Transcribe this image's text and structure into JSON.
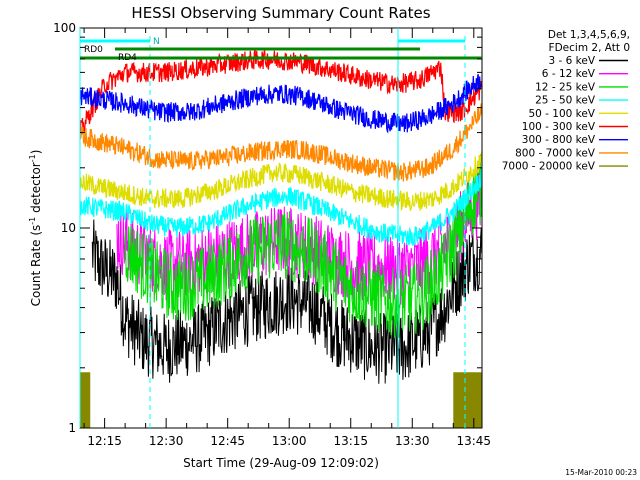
{
  "chart_data": {
    "type": "line",
    "title": "HESSI Observing Summary Count Rates",
    "xlabel": "Start Time (29-Aug-09 12:09:02)",
    "ylabel": {
      "prefix": "Count Rate (s",
      "sup": "-1",
      "suffix": " detector",
      "sup2": "-1",
      "close": ")"
    },
    "x_ticks": [
      "12:15",
      "12:30",
      "12:45",
      "13:00",
      "13:15",
      "13:30",
      "13:45"
    ],
    "x_tick_minutes": [
      15,
      30,
      45,
      60,
      75,
      90,
      105
    ],
    "xlim_minutes": [
      9,
      107
    ],
    "y_scale": "log",
    "ylim": [
      1,
      100
    ],
    "y_ticks": [
      "1",
      "10",
      "100"
    ],
    "legend": {
      "header": [
        "Det 1,3,4,5,6,9,",
        "FDecim 2, Att 0"
      ],
      "entries": [
        "3 - 6 keV",
        "6 - 12 keV",
        "12 - 25 keV",
        "25 - 50 keV",
        "50 - 100 keV",
        "100 - 300 keV",
        "300 - 800 keV",
        "800 - 7000 keV",
        "7000 - 20000 keV"
      ],
      "colors": [
        "#000000",
        "#ff00ff",
        "#00dd00",
        "#00ffff",
        "#dddd00",
        "#ff0000",
        "#0000ff",
        "#ff8800",
        "#888800"
      ],
      "placement": "right"
    },
    "annotations": {
      "saa_label": "RD0",
      "night_label": "N",
      "decim_label": "RD4"
    },
    "timestamp": "15-Mar-2010 00:23",
    "series_profiles": [
      {
        "name": "3 - 6 keV",
        "color": "#000000",
        "start": 12,
        "end": 107,
        "points": [
          [
            12,
            7.5
          ],
          [
            14,
            6.5
          ],
          [
            18,
            5.5
          ],
          [
            20,
            3.5
          ],
          [
            24,
            2.8
          ],
          [
            30,
            2.5
          ],
          [
            38,
            2.8
          ],
          [
            45,
            3.5
          ],
          [
            52,
            4
          ],
          [
            60,
            4.5
          ],
          [
            66,
            4
          ],
          [
            72,
            3
          ],
          [
            80,
            2.5
          ],
          [
            88,
            2.5
          ],
          [
            94,
            3
          ],
          [
            98,
            4
          ],
          [
            100,
            5
          ],
          [
            104,
            7
          ],
          [
            107,
            7.5
          ]
        ]
      },
      {
        "name": "6 - 12 keV",
        "color": "#ff00ff",
        "start": 18,
        "end": 107,
        "points": [
          [
            18,
            9
          ],
          [
            24,
            7.5
          ],
          [
            30,
            6.5
          ],
          [
            40,
            7
          ],
          [
            50,
            8
          ],
          [
            58,
            8.8
          ],
          [
            65,
            8
          ],
          [
            75,
            6.5
          ],
          [
            86,
            6.2
          ],
          [
            92,
            6.5
          ],
          [
            96,
            7.5
          ],
          [
            100,
            9
          ],
          [
            104,
            12
          ],
          [
            107,
            14
          ]
        ]
      },
      {
        "name": "12 - 25 keV",
        "color": "#00dd00",
        "start": 20,
        "end": 107,
        "points": [
          [
            20,
            8
          ],
          [
            26,
            6
          ],
          [
            32,
            5
          ],
          [
            40,
            5.5
          ],
          [
            50,
            7.5
          ],
          [
            58,
            8.5
          ],
          [
            65,
            7.5
          ],
          [
            75,
            5
          ],
          [
            85,
            4.2
          ],
          [
            92,
            4.5
          ],
          [
            97,
            6
          ],
          [
            101,
            9
          ],
          [
            104,
            13
          ],
          [
            107,
            16
          ]
        ]
      },
      {
        "name": "25 - 50 keV",
        "color": "#00ffff",
        "start": 9,
        "end": 107,
        "points": [
          [
            9,
            13
          ],
          [
            14,
            12.5
          ],
          [
            20,
            12
          ],
          [
            26,
            10.5
          ],
          [
            32,
            10
          ],
          [
            40,
            10.5
          ],
          [
            48,
            12.5
          ],
          [
            55,
            14
          ],
          [
            60,
            14.5
          ],
          [
            66,
            13
          ],
          [
            74,
            11
          ],
          [
            82,
            9.5
          ],
          [
            90,
            9
          ],
          [
            95,
            10
          ],
          [
            100,
            12
          ],
          [
            104,
            15
          ],
          [
            107,
            18
          ]
        ]
      },
      {
        "name": "50 - 100 keV",
        "color": "#dddd00",
        "start": 9,
        "end": 107,
        "points": [
          [
            9,
            17
          ],
          [
            14,
            16
          ],
          [
            20,
            15
          ],
          [
            26,
            14
          ],
          [
            34,
            14
          ],
          [
            42,
            15.5
          ],
          [
            50,
            17.5
          ],
          [
            56,
            19
          ],
          [
            62,
            18.5
          ],
          [
            68,
            17
          ],
          [
            76,
            15
          ],
          [
            84,
            14
          ],
          [
            90,
            13.5
          ],
          [
            95,
            14
          ],
          [
            100,
            16
          ],
          [
            104,
            19
          ],
          [
            107,
            22
          ]
        ]
      },
      {
        "name": "100 - 300 keV",
        "color": "#ff0000",
        "start": 9,
        "end": 107,
        "points": [
          [
            9,
            30
          ],
          [
            15,
            52
          ],
          [
            20,
            60
          ],
          [
            30,
            60
          ],
          [
            40,
            64
          ],
          [
            48,
            68
          ],
          [
            54,
            70
          ],
          [
            62,
            68
          ],
          [
            70,
            62
          ],
          [
            78,
            56
          ],
          [
            86,
            52
          ],
          [
            92,
            55
          ],
          [
            97,
            64
          ],
          [
            98,
            38
          ],
          [
            102,
            38
          ],
          [
            105,
            45
          ],
          [
            107,
            50
          ]
        ]
      },
      {
        "name": "300 - 800 keV",
        "color": "#0000ff",
        "start": 9,
        "end": 107,
        "points": [
          [
            9,
            46
          ],
          [
            14,
            44
          ],
          [
            20,
            42
          ],
          [
            28,
            38
          ],
          [
            36,
            38
          ],
          [
            44,
            42
          ],
          [
            52,
            46
          ],
          [
            58,
            47
          ],
          [
            64,
            45
          ],
          [
            72,
            39
          ],
          [
            80,
            35
          ],
          [
            88,
            33
          ],
          [
            94,
            36
          ],
          [
            100,
            42
          ],
          [
            104,
            50
          ],
          [
            107,
            56
          ]
        ]
      },
      {
        "name": "800 - 7000 keV",
        "color": "#ff8800",
        "start": 9,
        "end": 107,
        "points": [
          [
            9,
            29
          ],
          [
            14,
            27
          ],
          [
            20,
            25
          ],
          [
            28,
            22
          ],
          [
            36,
            21.5
          ],
          [
            44,
            22.5
          ],
          [
            52,
            24
          ],
          [
            58,
            25
          ],
          [
            64,
            24.5
          ],
          [
            72,
            22
          ],
          [
            80,
            20
          ],
          [
            88,
            19
          ],
          [
            94,
            20
          ],
          [
            100,
            25
          ],
          [
            104,
            32
          ],
          [
            107,
            38
          ]
        ]
      },
      {
        "name": "7000 - 20000 keV",
        "color": "#888800",
        "start": 9,
        "end": 107,
        "block_ranges": [
          [
            9,
            11.5
          ],
          [
            100,
            107
          ]
        ],
        "block_value": 1.9
      }
    ]
  }
}
